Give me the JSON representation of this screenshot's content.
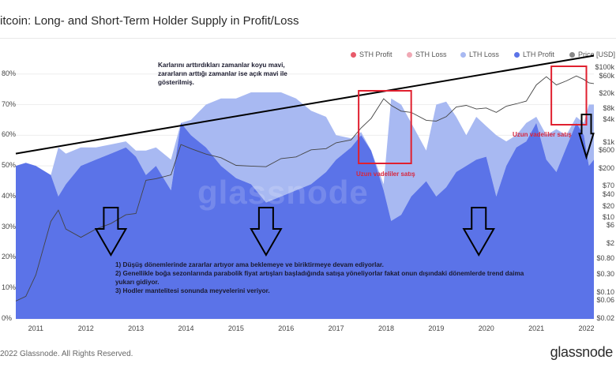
{
  "header": {
    "title": "itcoin: Long- and Short-Term Holder Supply in Profit/Loss"
  },
  "legend": [
    {
      "name": "STH Profit",
      "color": "#e85a6a"
    },
    {
      "name": "STH Loss",
      "color": "#f0a8b4"
    },
    {
      "name": "LTH Loss",
      "color": "#a8b9f2"
    },
    {
      "name": "LTH Profit",
      "color": "#5b73e8"
    },
    {
      "name": "Price [USD]",
      "color": "#888888"
    }
  ],
  "annotations": {
    "top_note": [
      "Karlarını arttırdıkları zamanlar koyu mavi,",
      "zararların arttığı zamanlar ise açık mavi ile",
      "gösterilmiş."
    ],
    "sell_label_1": "Uzun vadeliler satış",
    "sell_label_2": "Uzun vadeliler satış",
    "bottom_note": [
      "1) Düşüş dönemlerinde zararlar artıyor ama beklemeye ve biriktirmeye devam ediyorlar.",
      "2) Genellikle boğa sezonlarında parabolik fiyat artışları başladığında satışa yöneliyorlar fakat  onun dışındaki dönemlerde trend daima",
      "yukarı gidiyor.",
      "3) Hodler mantelitesi sonunda meyvelerini veriyor."
    ]
  },
  "watermark": "glassnode",
  "footer": {
    "copyright": "2022 Glassnode. All Rights Reserved.",
    "brand": "glassnode"
  },
  "chart_data": {
    "type": "area",
    "x_ticks": [
      "2011",
      "2012",
      "2013",
      "2014",
      "2015",
      "2016",
      "2017",
      "2018",
      "2019",
      "2020",
      "2021",
      "2022"
    ],
    "y_left": {
      "ticks": [
        "0%",
        "10%",
        "20%",
        "30%",
        "40%",
        "50%",
        "60%",
        "70%",
        "80%"
      ],
      "range": [
        0,
        82
      ]
    },
    "y_right": {
      "scale": "log",
      "ticks": [
        "$0.02",
        "$0.06",
        "$0.10",
        "$0.30",
        "$0.80",
        "$2",
        "$6",
        "$10",
        "$20",
        "$40",
        "$70",
        "$200",
        "$600",
        "$1k",
        "$4k",
        "$8k",
        "$20k",
        "$60k",
        "$100k"
      ],
      "range": [
        0.02,
        100000
      ]
    },
    "x": [
      2010.6,
      2010.8,
      2011.0,
      2011.3,
      2011.45,
      2011.6,
      2011.9,
      2012.2,
      2012.5,
      2012.8,
      2013.0,
      2013.2,
      2013.4,
      2013.7,
      2013.9,
      2014.1,
      2014.4,
      2014.7,
      2015.0,
      2015.3,
      2015.6,
      2015.9,
      2016.2,
      2016.5,
      2016.8,
      2017.0,
      2017.3,
      2017.5,
      2017.7,
      2017.95,
      2018.1,
      2018.3,
      2018.5,
      2018.8,
      2019.0,
      2019.2,
      2019.4,
      2019.6,
      2019.8,
      2020.0,
      2020.2,
      2020.4,
      2020.6,
      2020.8,
      2021.0,
      2021.2,
      2021.4,
      2021.6,
      2021.8,
      2021.95,
      2022.05,
      2022.15
    ],
    "series": [
      {
        "name": "LTH Profit",
        "values": [
          50,
          51,
          50,
          47,
          40,
          44,
          50,
          52,
          54,
          56,
          53,
          47,
          50,
          42,
          64,
          60,
          56,
          50,
          46,
          44,
          38,
          40,
          42,
          44,
          48,
          52,
          56,
          60,
          55,
          42,
          32,
          34,
          40,
          45,
          40,
          43,
          48,
          50,
          52,
          53,
          40,
          50,
          56,
          58,
          64,
          52,
          48,
          56,
          64,
          60,
          50,
          52
        ]
      },
      {
        "name": "LTH Loss",
        "values": [
          0,
          0,
          0,
          0,
          16,
          10,
          6,
          4,
          3,
          2,
          2,
          8,
          6,
          10,
          0,
          5,
          14,
          22,
          26,
          30,
          36,
          34,
          30,
          24,
          18,
          8,
          3,
          1,
          0,
          2,
          40,
          36,
          24,
          10,
          30,
          28,
          18,
          10,
          14,
          10,
          20,
          8,
          4,
          6,
          2,
          8,
          14,
          4,
          2,
          4,
          20,
          18
        ]
      },
      {
        "name": "Price [USD]",
        "values": [
          0.06,
          0.08,
          0.3,
          8,
          16,
          5,
          3,
          5,
          7,
          12,
          13,
          100,
          110,
          140,
          900,
          700,
          500,
          400,
          250,
          240,
          230,
          380,
          420,
          650,
          700,
          1000,
          1200,
          2500,
          4500,
          15000,
          10000,
          7000,
          6500,
          4000,
          3800,
          5000,
          9000,
          10000,
          8000,
          8500,
          6500,
          9500,
          11000,
          13000,
          35000,
          58000,
          35000,
          45000,
          61000,
          49000,
          40000,
          38000
        ]
      }
    ],
    "annotation_arrows": [
      {
        "x": 2012.5,
        "kind": "down"
      },
      {
        "x": 2015.6,
        "kind": "down"
      },
      {
        "x": 2019.85,
        "kind": "down"
      },
      {
        "x": 2022.0,
        "kind": "down"
      }
    ],
    "sell_boxes": [
      [
        2017.45,
        2018.5
      ],
      [
        2021.3,
        2022.0
      ]
    ],
    "trend_line": [
      [
        2010.6,
        54
      ],
      [
        2022.15,
        86
      ]
    ]
  }
}
